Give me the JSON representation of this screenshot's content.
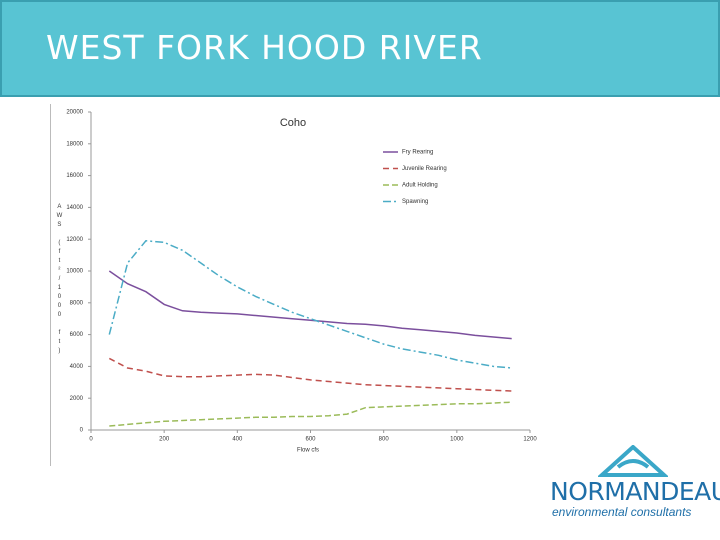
{
  "header": {
    "title": "WEST FORK HOOD RIVER"
  },
  "logo": {
    "name": "NORMANDEAU",
    "tagline": "environmental consultants"
  },
  "chart_data": {
    "type": "line",
    "title": "Coho",
    "x_label": "Flow cfs",
    "y_label": "AWS (ft²/1000 ft)",
    "x": [
      50,
      100,
      150,
      200,
      250,
      300,
      350,
      400,
      450,
      500,
      550,
      600,
      650,
      700,
      750,
      800,
      850,
      900,
      950,
      1000,
      1050,
      1100,
      1150
    ],
    "series": [
      {
        "name": "Fry Rearing",
        "color": "#7b4f9d",
        "dash": "none",
        "values": [
          10000,
          9200,
          8700,
          7900,
          7500,
          7400,
          7350,
          7300,
          7200,
          7100,
          7000,
          6900,
          6800,
          6700,
          6650,
          6550,
          6400,
          6300,
          6200,
          6100,
          5950,
          5850,
          5750
        ]
      },
      {
        "name": "Juvenile Rearing",
        "color": "#c0504d",
        "dash": "6,4",
        "values": [
          4500,
          3900,
          3700,
          3400,
          3350,
          3350,
          3400,
          3450,
          3500,
          3450,
          3300,
          3150,
          3050,
          2950,
          2850,
          2800,
          2750,
          2700,
          2650,
          2600,
          2550,
          2500,
          2450
        ]
      },
      {
        "name": "Adult Holding",
        "color": "#9bbb59",
        "dash": "6,3",
        "values": [
          250,
          350,
          450,
          550,
          600,
          650,
          700,
          750,
          800,
          800,
          850,
          850,
          900,
          1000,
          1400,
          1450,
          1500,
          1550,
          1600,
          1650,
          1650,
          1700,
          1750
        ]
      },
      {
        "name": "Spawning",
        "color": "#4bacc6",
        "dash": "8,3,2,3",
        "values": [
          6000,
          10500,
          11900,
          11800,
          11300,
          10500,
          9700,
          9000,
          8400,
          7900,
          7400,
          7000,
          6600,
          6200,
          5800,
          5400,
          5100,
          4900,
          4700,
          4400,
          4200,
          4000,
          3900
        ]
      }
    ],
    "xlim": [
      0,
      1200
    ],
    "xticks": [
      0,
      200,
      400,
      600,
      800,
      1000,
      1200
    ],
    "ylim": [
      0,
      20000
    ],
    "yticks": [
      0,
      2000,
      4000,
      6000,
      8000,
      10000,
      12000,
      14000,
      16000,
      18000,
      20000
    ],
    "legend": "upper right"
  }
}
